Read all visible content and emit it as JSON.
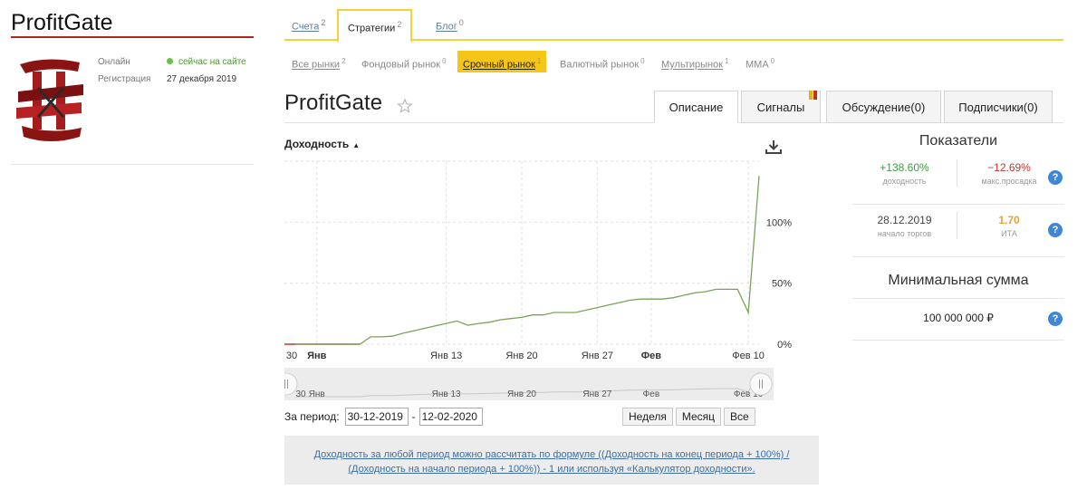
{
  "profile": {
    "name": "ProfitGate",
    "online_label": "Онлайн",
    "online_value": "сейчас на сайте",
    "registration_label": "Регистрация",
    "registration_value": "27 декабря 2019"
  },
  "top_tabs": [
    {
      "label": "Счета",
      "count": "2"
    },
    {
      "label": "Стратегии",
      "count": "2"
    },
    {
      "label": "Блог",
      "count": "0"
    }
  ],
  "markets": [
    {
      "label": "Все рынки",
      "count": "2"
    },
    {
      "label": "Фондовый рынок",
      "count": "0"
    },
    {
      "label": "Срочный рынок",
      "count": "1"
    },
    {
      "label": "Валютный рынок",
      "count": "0"
    },
    {
      "label": "Мультирынок",
      "count": "1"
    },
    {
      "label": "MMA",
      "count": "0"
    }
  ],
  "strategy": {
    "title": "ProfitGate"
  },
  "section_tabs": [
    "Описание",
    "Сигналы",
    "Обсуждение(0)",
    "Подписчики(0)"
  ],
  "chart_title": "Доходность",
  "chart_data": {
    "type": "line",
    "x_ticks_main": [
      "30",
      "Янв",
      "Янв 13",
      "Янв 20",
      "Янв 27",
      "Фев",
      "Фев 10"
    ],
    "x_ticks_nav": [
      "30",
      "Янв",
      "Янв 13",
      "Янв 20",
      "Янв 27",
      "Фев",
      "Фев 10"
    ],
    "y_ticks": [
      "0%",
      "50%",
      "100%"
    ],
    "ylim": [
      0,
      150
    ],
    "grid": true,
    "series": [
      {
        "color": "#7aa35a",
        "points": [
          [
            "2019-12-30",
            0
          ],
          [
            "2019-12-31",
            0
          ],
          [
            "2020-01-01",
            0
          ],
          [
            "2020-01-02",
            0
          ],
          [
            "2020-01-03",
            0
          ],
          [
            "2020-01-04",
            0
          ],
          [
            "2020-01-05",
            0
          ],
          [
            "2020-01-06",
            6
          ],
          [
            "2020-01-07",
            6
          ],
          [
            "2020-01-08",
            6.5
          ],
          [
            "2020-01-09",
            9
          ],
          [
            "2020-01-10",
            11
          ],
          [
            "2020-01-11",
            13
          ],
          [
            "2020-01-12",
            15
          ],
          [
            "2020-01-13",
            17
          ],
          [
            "2020-01-14",
            19
          ],
          [
            "2020-01-15",
            15.5
          ],
          [
            "2020-01-16",
            17
          ],
          [
            "2020-01-17",
            18
          ],
          [
            "2020-01-18",
            20
          ],
          [
            "2020-01-19",
            21
          ],
          [
            "2020-01-20",
            22
          ],
          [
            "2020-01-21",
            24
          ],
          [
            "2020-01-22",
            24
          ],
          [
            "2020-01-23",
            26
          ],
          [
            "2020-01-24",
            26
          ],
          [
            "2020-01-25",
            26
          ],
          [
            "2020-01-26",
            28
          ],
          [
            "2020-01-27",
            30
          ],
          [
            "2020-01-28",
            32
          ],
          [
            "2020-01-29",
            34
          ],
          [
            "2020-01-30",
            36
          ],
          [
            "2020-01-31",
            37
          ],
          [
            "2020-02-01",
            37
          ],
          [
            "2020-02-02",
            37
          ],
          [
            "2020-02-03",
            38
          ],
          [
            "2020-02-04",
            40
          ],
          [
            "2020-02-05",
            42
          ],
          [
            "2020-02-06",
            43
          ],
          [
            "2020-02-07",
            45
          ],
          [
            "2020-02-08",
            45
          ],
          [
            "2020-02-09",
            45
          ],
          [
            "2020-02-10",
            26
          ],
          [
            "2020-02-11",
            138
          ]
        ]
      }
    ]
  },
  "period": {
    "label": "За период:",
    "from": "30-12-2019",
    "separator": "-",
    "to": "12-02-2020"
  },
  "range_buttons": [
    "Неделя",
    "Месяц",
    "Все"
  ],
  "notice_text": "Доходность за любой период можно рассчитать по формуле ((Доходность на конец периода + 100%) / (Доходность на начало периода + 100%)) - 1 или используя «Калькулятор доходности».",
  "indicators": {
    "title": "Показатели",
    "profit": {
      "value": "+138.60%",
      "label": "доходность",
      "color": "#3d9a3d"
    },
    "drawdown": {
      "value": "−12.69%",
      "label": "макс.просадка",
      "color": "#c0392b"
    },
    "start": {
      "value": "28.12.2019",
      "label": "начало торгов"
    },
    "ita": {
      "value": "1.70",
      "label": "ИТА",
      "color": "#e8a23a"
    }
  },
  "min_sum": {
    "title": "Минимальная сумма",
    "value": "100 000 000 ₽"
  },
  "help_glyph": "?",
  "icons": {
    "star": "star-outline-icon",
    "download": "download-icon",
    "help": "help-circle-icon",
    "online": "online-dot-icon"
  }
}
